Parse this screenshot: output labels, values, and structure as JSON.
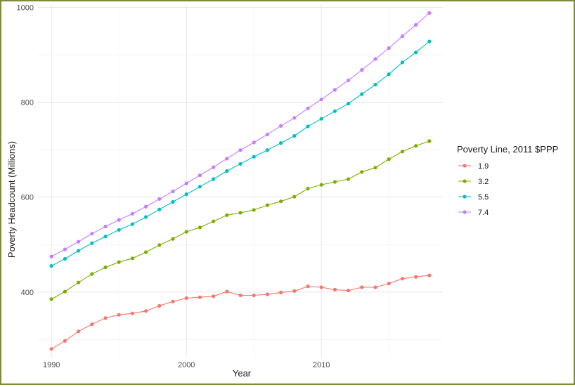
{
  "chart_data": {
    "type": "line",
    "title": "",
    "xlabel": "Year",
    "ylabel": "Poverty Headcount (Millions)",
    "xlim": [
      1989,
      2019
    ],
    "ylim": [
      262,
      1005
    ],
    "x_ticks": [
      1990,
      2000,
      2010
    ],
    "y_ticks": [
      400,
      600,
      800,
      1000
    ],
    "grid": true,
    "legend": {
      "title": "Poverty Line, 2011 $PPP",
      "position": "right"
    },
    "x": [
      1990,
      1991,
      1992,
      1993,
      1994,
      1995,
      1996,
      1997,
      1998,
      1999,
      2000,
      2001,
      2002,
      2003,
      2004,
      2005,
      2006,
      2007,
      2008,
      2009,
      2010,
      2011,
      2012,
      2013,
      2014,
      2015,
      2016,
      2017,
      2018
    ],
    "series": [
      {
        "name": "1.9",
        "color": "#f8766d",
        "values": [
          280,
          297,
          317,
          332,
          345,
          352,
          355,
          360,
          371,
          380,
          387,
          389,
          391,
          401,
          393,
          393,
          395,
          399,
          402,
          412,
          410,
          405,
          403,
          410,
          410,
          418,
          428,
          432,
          435
        ]
      },
      {
        "name": "3.2",
        "color": "#7cae00",
        "values": [
          385,
          401,
          420,
          438,
          452,
          463,
          471,
          484,
          499,
          512,
          527,
          536,
          549,
          562,
          567,
          573,
          583,
          591,
          601,
          618,
          626,
          632,
          638,
          653,
          662,
          680,
          696,
          708,
          718
        ]
      },
      {
        "name": "5.5",
        "color": "#00bfc4",
        "values": [
          455,
          470,
          487,
          503,
          517,
          531,
          543,
          558,
          574,
          590,
          606,
          622,
          638,
          655,
          670,
          685,
          699,
          714,
          729,
          749,
          765,
          781,
          797,
          817,
          837,
          859,
          884,
          905,
          928
        ]
      },
      {
        "name": "7.4",
        "color": "#c77cff",
        "values": [
          475,
          490,
          506,
          523,
          538,
          552,
          565,
          580,
          596,
          612,
          629,
          646,
          663,
          681,
          699,
          715,
          732,
          750,
          767,
          787,
          806,
          826,
          846,
          868,
          891,
          914,
          939,
          963,
          988
        ]
      }
    ]
  }
}
